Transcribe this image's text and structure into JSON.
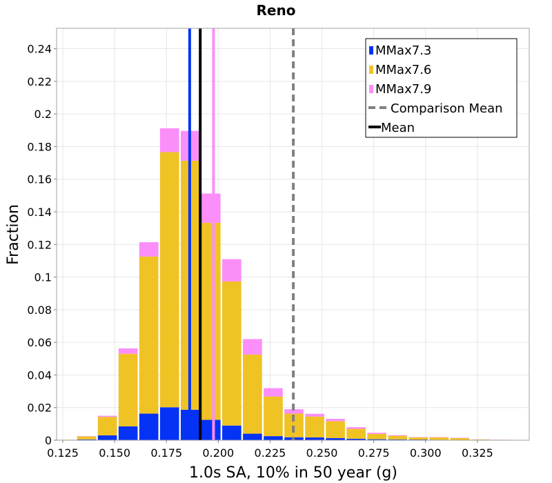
{
  "chart_data": {
    "type": "bar",
    "stacked": true,
    "title": "Reno",
    "xlabel": "1.0s SA, 10% in 50 year (g)",
    "ylabel": "Fraction",
    "xlim": [
      0.122,
      0.35
    ],
    "ylim": [
      0,
      0.2525
    ],
    "bin_width": 0.01,
    "x_ticks": [
      0.125,
      0.15,
      0.175,
      0.2,
      0.225,
      0.25,
      0.275,
      0.3,
      0.325
    ],
    "x_tick_labels": [
      "0.125",
      "0.150",
      "0.175",
      "0.200",
      "0.225",
      "0.250",
      "0.275",
      "0.300",
      "0.325"
    ],
    "y_ticks": [
      0,
      0.02,
      0.04,
      0.06,
      0.08,
      0.1,
      0.12,
      0.14,
      0.16,
      0.18,
      0.2,
      0.22,
      0.24
    ],
    "y_tick_labels": [
      "0",
      "0.02",
      "0.04",
      "0.06",
      "0.08",
      "0.1",
      "0.12",
      "0.14",
      "0.16",
      "0.18",
      "0.2",
      "0.22",
      "0.24"
    ],
    "bin_centers": [
      0.1265,
      0.1365,
      0.1465,
      0.1565,
      0.1665,
      0.1765,
      0.1865,
      0.1965,
      0.2065,
      0.2165,
      0.2265,
      0.2365,
      0.2465,
      0.2565,
      0.2665,
      0.2765,
      0.2865,
      0.2965,
      0.3065,
      0.3165,
      0.3265,
      0.3365
    ],
    "series": [
      {
        "name": "MMax7.3",
        "color": "#0533f5",
        "values": [
          0,
          0.0005,
          0.003,
          0.0085,
          0.0163,
          0.0202,
          0.0187,
          0.0125,
          0.009,
          0.004,
          0.0025,
          0.0018,
          0.0017,
          0.0013,
          0.0009,
          0.0006,
          0.0005,
          0.0004,
          0.0003,
          0.0002,
          0.0001,
          0
        ]
      },
      {
        "name": "MMax7.6",
        "color": "#f0c324",
        "values": [
          0.0003,
          0.0018,
          0.0113,
          0.0445,
          0.0963,
          0.1564,
          0.1526,
          0.1208,
          0.0883,
          0.0485,
          0.0243,
          0.0145,
          0.0128,
          0.0104,
          0.0061,
          0.0033,
          0.0022,
          0.0013,
          0.0014,
          0.0011,
          0.0003,
          0.0002
        ]
      },
      {
        "name": "MMax7.9",
        "color": "#fb8ef9",
        "values": [
          0,
          0.0002,
          0.0007,
          0.0033,
          0.0088,
          0.0146,
          0.0183,
          0.0179,
          0.0137,
          0.0095,
          0.0051,
          0.0027,
          0.0017,
          0.0014,
          0.001,
          0.0007,
          0.0004,
          0.0002,
          0.0002,
          0.0002,
          0.0001,
          0.0001
        ]
      }
    ],
    "vertical_lines": [
      {
        "name": "MMax7.3 mean",
        "x": 0.1862,
        "color": "#0533f5",
        "style": "solid"
      },
      {
        "name": "MMax7.9 mean",
        "x": 0.1977,
        "color": "#fb8ef9",
        "style": "solid"
      },
      {
        "name": "Mean",
        "x": 0.1913,
        "color": "#000000",
        "style": "solid"
      },
      {
        "name": "Comparison Mean",
        "x": 0.2362,
        "color": "#808080",
        "style": "dashed"
      }
    ],
    "legend": {
      "position": "top-right",
      "entries": [
        {
          "label": "MMax7.3",
          "kind": "swatch",
          "color": "#0533f5"
        },
        {
          "label": "MMax7.6",
          "kind": "swatch",
          "color": "#f0c324"
        },
        {
          "label": "MMax7.9",
          "kind": "swatch",
          "color": "#fb8ef9"
        },
        {
          "label": "Comparison Mean",
          "kind": "dashed-line",
          "color": "#808080"
        },
        {
          "label": "Mean",
          "kind": "line",
          "color": "#000000"
        }
      ]
    },
    "grid": true
  }
}
